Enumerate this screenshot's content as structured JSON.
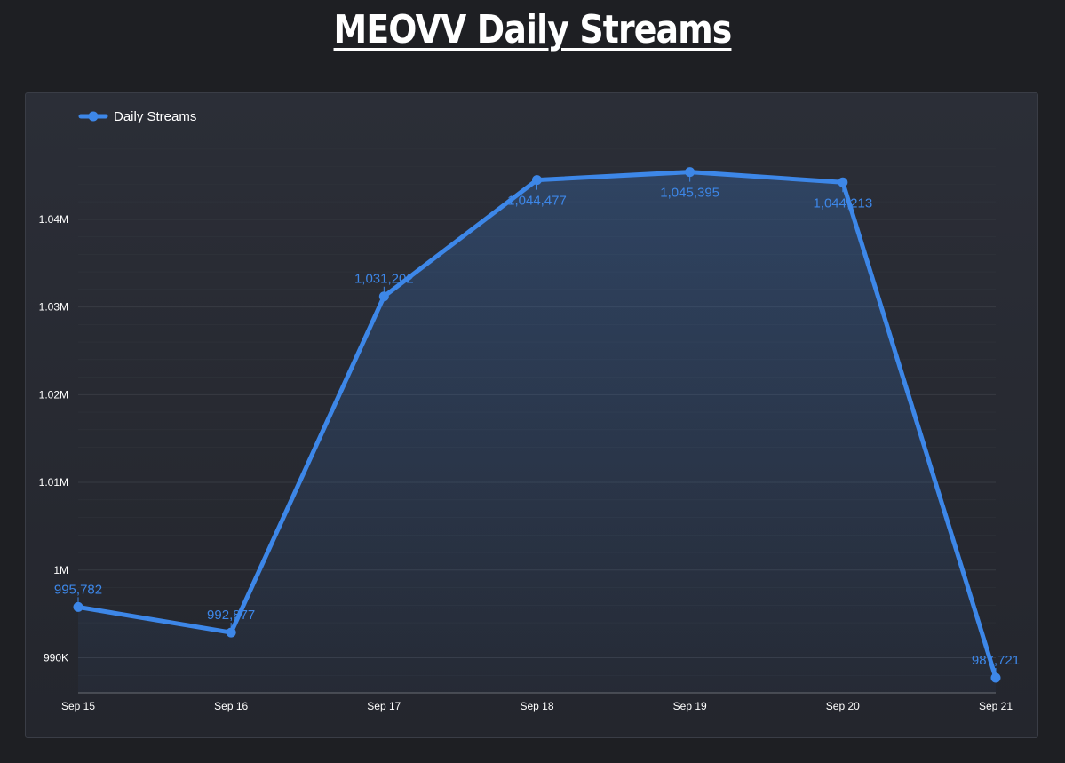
{
  "title": "MEOVV Daily Streams",
  "colors": {
    "page_bg": "#1e1f23",
    "panel_bg": "#2a2d35",
    "line": "#3d87e8",
    "label": "#3d87e8",
    "grid": "#3a3d45",
    "tick": "#ffffff"
  },
  "chart_data": {
    "type": "line",
    "categories": [
      "Sep 15",
      "Sep 16",
      "Sep 17",
      "Sep 18",
      "Sep 19",
      "Sep 20",
      "Sep 21"
    ],
    "series": [
      {
        "name": "Daily Streams",
        "values": [
          995782,
          992877,
          1031202,
          1044477,
          1045395,
          1044213,
          987721
        ],
        "labels": [
          "995,782",
          "992,877",
          "1,031,202",
          "1,044,477",
          "1,045,395",
          "1,044,213",
          "987,721"
        ]
      }
    ],
    "ylim": [
      986000,
      1049000
    ],
    "yticks": [
      990000,
      1000000,
      1010000,
      1020000,
      1030000,
      1040000
    ],
    "ytick_labels": [
      "990K",
      "1M",
      "1.01M",
      "1.02M",
      "1.03M",
      "1.04M"
    ],
    "xlabel": "",
    "ylabel": "",
    "legend": "top-left",
    "grid": true,
    "fill_area": true
  }
}
